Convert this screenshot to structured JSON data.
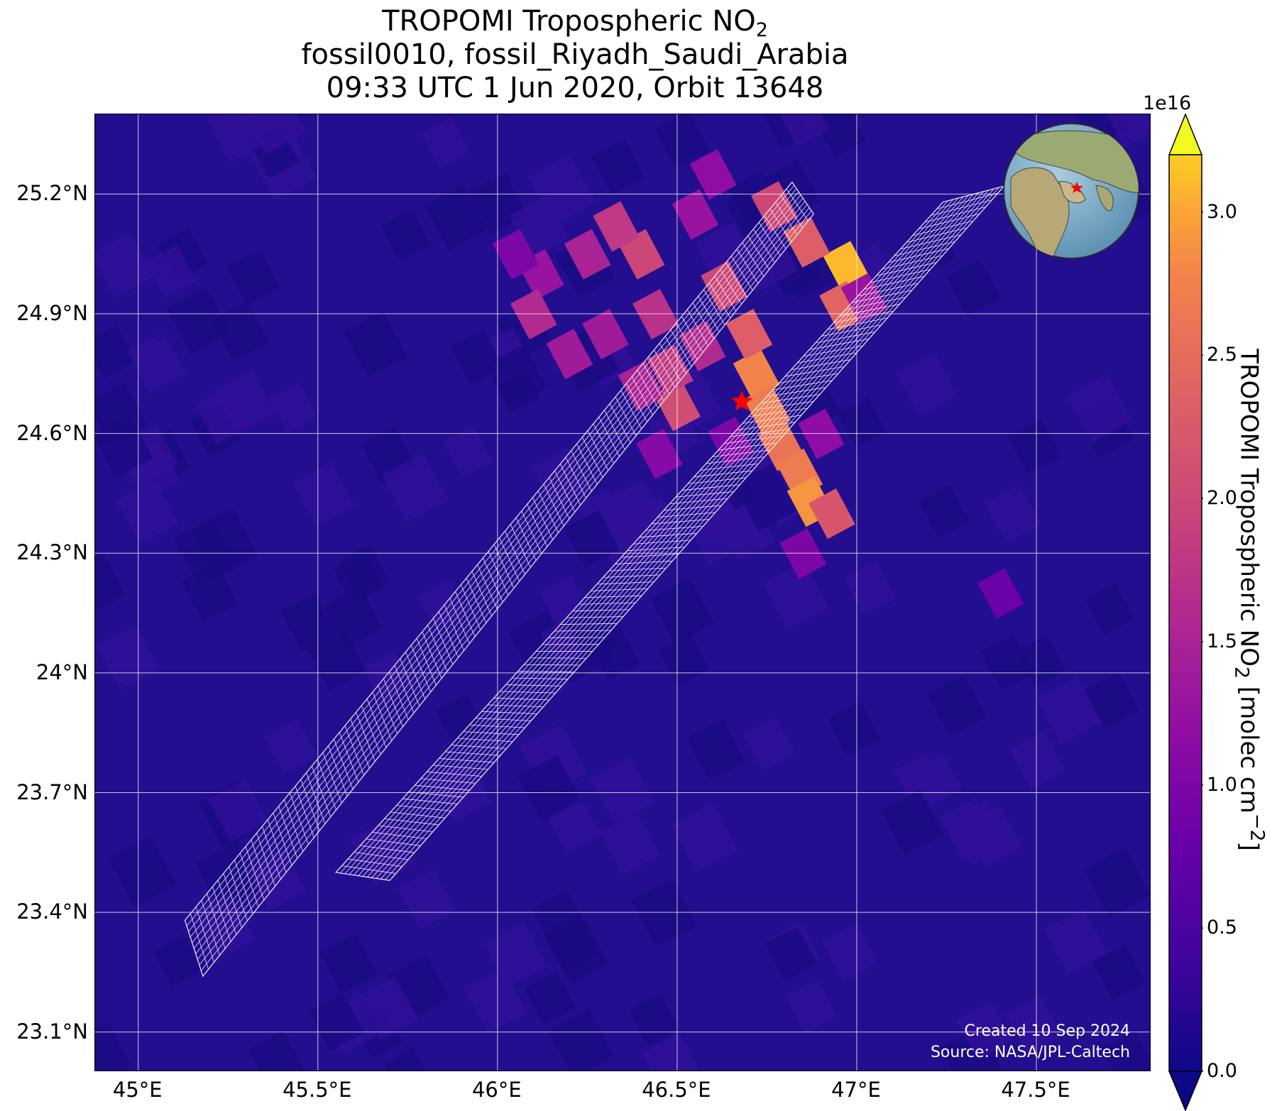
{
  "title": {
    "line1_main": "TROPOMI Tropospheric NO",
    "line1_sub": "2",
    "line2": "fossil0010, fossil_Riyadh_Saudi_Arabia",
    "line3": "09:33 UTC 1 Jun 2020, Orbit 13648"
  },
  "map": {
    "lon_range": [
      44.88,
      47.82
    ],
    "lat_range": [
      23.0,
      25.4
    ],
    "lat_ticks": [
      {
        "value": 25.2,
        "label": "25.2°N"
      },
      {
        "value": 24.9,
        "label": "24.9°N"
      },
      {
        "value": 24.6,
        "label": "24.6°N"
      },
      {
        "value": 24.3,
        "label": "24.3°N"
      },
      {
        "value": 24.0,
        "label": "24°N"
      },
      {
        "value": 23.7,
        "label": "23.7°N"
      },
      {
        "value": 23.4,
        "label": "23.4°N"
      },
      {
        "value": 23.1,
        "label": "23.1°N"
      }
    ],
    "lon_ticks": [
      {
        "value": 45.0,
        "label": "45°E"
      },
      {
        "value": 45.5,
        "label": "45.5°E"
      },
      {
        "value": 46.0,
        "label": "46°E"
      },
      {
        "value": 46.5,
        "label": "46.5°E"
      },
      {
        "value": 47.0,
        "label": "47°E"
      },
      {
        "value": 47.5,
        "label": "47.5°E"
      }
    ],
    "grid": true,
    "background_color": "#230e8f",
    "target_marker": {
      "lon": 46.68,
      "lat": 24.68,
      "symbol": "red-star-icon",
      "color": "#ff0000"
    },
    "inset": {
      "type": "globe",
      "location": "top-right",
      "marker": "red-star-icon"
    },
    "credit_line1": "Created 10 Sep 2024",
    "credit_line2": "Source: NASA/JPL-Caltech"
  },
  "colorbar": {
    "colormap": "plasma",
    "min": 0.0,
    "max": 3.2,
    "exponent_label": "1e16",
    "ticks": [
      "0.0",
      "0.5",
      "1.0",
      "1.5",
      "2.0",
      "2.5",
      "3.0"
    ],
    "label_main": "TROPOMI Tropospheric NO",
    "label_sub": "2",
    "label_units": " [molec cm",
    "label_sup": "−2",
    "label_end": "]",
    "extend": "both"
  },
  "no2_plume_cells": [
    {
      "lon": 46.97,
      "lat": 25.02,
      "value": 3.1
    },
    {
      "lon": 46.96,
      "lat": 24.92,
      "value": 2.4
    },
    {
      "lon": 46.86,
      "lat": 25.08,
      "value": 2.3
    },
    {
      "lon": 46.77,
      "lat": 25.17,
      "value": 2.0
    },
    {
      "lon": 46.72,
      "lat": 24.75,
      "value": 2.8
    },
    {
      "lon": 46.75,
      "lat": 24.66,
      "value": 2.7
    },
    {
      "lon": 46.79,
      "lat": 24.57,
      "value": 2.6
    },
    {
      "lon": 46.84,
      "lat": 24.5,
      "value": 2.7
    },
    {
      "lon": 46.87,
      "lat": 24.43,
      "value": 2.9
    },
    {
      "lon": 46.93,
      "lat": 24.4,
      "value": 2.2
    },
    {
      "lon": 46.7,
      "lat": 24.85,
      "value": 2.3
    },
    {
      "lon": 46.63,
      "lat": 24.97,
      "value": 2.0
    },
    {
      "lon": 46.5,
      "lat": 24.67,
      "value": 2.1
    },
    {
      "lon": 46.48,
      "lat": 24.76,
      "value": 1.8
    },
    {
      "lon": 46.44,
      "lat": 24.9,
      "value": 1.7
    },
    {
      "lon": 46.4,
      "lat": 25.05,
      "value": 2.0
    },
    {
      "lon": 46.33,
      "lat": 25.12,
      "value": 1.8
    },
    {
      "lon": 46.25,
      "lat": 25.05,
      "value": 1.5
    },
    {
      "lon": 46.3,
      "lat": 24.85,
      "value": 1.4
    },
    {
      "lon": 46.12,
      "lat": 25.0,
      "value": 1.3
    },
    {
      "lon": 46.1,
      "lat": 24.9,
      "value": 1.6
    },
    {
      "lon": 46.2,
      "lat": 24.8,
      "value": 1.4
    },
    {
      "lon": 46.05,
      "lat": 25.05,
      "value": 1.0
    },
    {
      "lon": 46.6,
      "lat": 25.25,
      "value": 1.2
    },
    {
      "lon": 46.55,
      "lat": 25.15,
      "value": 1.3
    },
    {
      "lon": 46.9,
      "lat": 24.6,
      "value": 1.2
    },
    {
      "lon": 46.85,
      "lat": 24.3,
      "value": 1.0
    },
    {
      "lon": 47.02,
      "lat": 24.94,
      "value": 1.3
    },
    {
      "lon": 46.45,
      "lat": 24.55,
      "value": 1.1
    },
    {
      "lon": 46.65,
      "lat": 24.58,
      "value": 1.0
    },
    {
      "lon": 47.4,
      "lat": 24.2,
      "value": 0.8
    },
    {
      "lon": 46.4,
      "lat": 24.72,
      "value": 1.5
    },
    {
      "lon": 46.57,
      "lat": 24.82,
      "value": 1.6
    }
  ],
  "overlay_swaths": [
    {
      "name": "swath-a",
      "corners": [
        [
          45.13,
          23.38
        ],
        [
          45.18,
          23.24
        ],
        [
          46.88,
          25.15
        ],
        [
          46.82,
          25.23
        ]
      ],
      "cols": 10,
      "rows": 110
    },
    {
      "name": "swath-b",
      "corners": [
        [
          45.55,
          23.5
        ],
        [
          45.7,
          23.48
        ],
        [
          47.41,
          25.22
        ],
        [
          47.24,
          25.18
        ]
      ],
      "cols": 12,
      "rows": 100
    }
  ]
}
